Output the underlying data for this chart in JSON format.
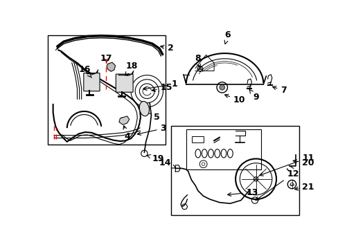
{
  "bg_color": "#ffffff",
  "line_color": "#000000",
  "fig_w": 4.89,
  "fig_h": 3.6,
  "dpi": 100,
  "font_size": 7.5,
  "font_size_large": 9.0
}
